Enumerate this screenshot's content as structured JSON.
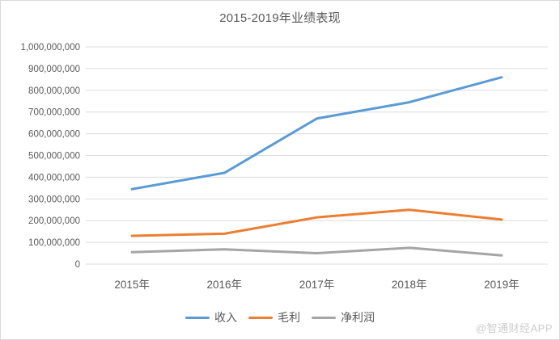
{
  "watermark": "@智通财经APP",
  "chart_data": {
    "type": "line",
    "title": "2015-2019年业绩表现",
    "categories": [
      "2015年",
      "2016年",
      "2017年",
      "2018年",
      "2019年"
    ],
    "series": [
      {
        "name": "收入",
        "color": "#5B9BD5",
        "values": [
          345000000,
          420000000,
          670000000,
          745000000,
          860000000
        ]
      },
      {
        "name": "毛利",
        "color": "#ED7D31",
        "values": [
          130000000,
          140000000,
          215000000,
          250000000,
          205000000
        ]
      },
      {
        "name": "净利润",
        "color": "#A5A5A5",
        "values": [
          55000000,
          68000000,
          50000000,
          75000000,
          40000000
        ]
      }
    ],
    "xlabel": "",
    "ylabel": "",
    "ylim": [
      0,
      1000000000
    ],
    "y_tick_step": 100000000,
    "y_tick_labels": [
      "0",
      "100,000,000",
      "200,000,000",
      "300,000,000",
      "400,000,000",
      "500,000,000",
      "600,000,000",
      "700,000,000",
      "800,000,000",
      "900,000,000",
      "1,000,000,000"
    ],
    "grid": true,
    "legend_position": "bottom"
  },
  "colors": {
    "background": "#FFFFFF",
    "border": "#D9D9D9",
    "gridline": "#DCDCDC",
    "axis_text": "#595959",
    "title_text": "#595959",
    "watermark_text": "#CCCCCC"
  }
}
